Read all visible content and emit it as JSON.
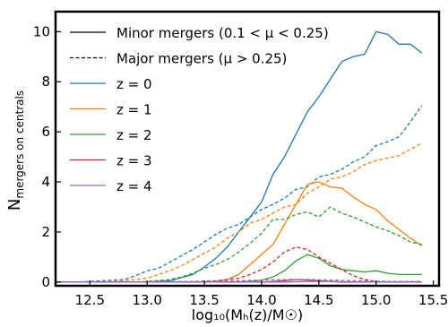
{
  "chart_data": {
    "type": "line",
    "xlabel": "log₁₀(Mₕ(z)/M☉)",
    "ylabel_main": "N",
    "ylabel_sub": "mergers on centrals",
    "xlim": [
      12.2,
      15.55
    ],
    "ylim": [
      -0.15,
      10.8
    ],
    "xticks": [
      12.5,
      13.0,
      13.5,
      14.0,
      14.5,
      15.0,
      15.5
    ],
    "xtick_labels": [
      "12.5",
      "13.0",
      "13.5",
      "14.0",
      "14.5",
      "15.0",
      "15.5"
    ],
    "yticks": [
      0,
      2,
      4,
      6,
      8,
      10
    ],
    "ytick_labels": [
      "0",
      "2",
      "4",
      "6",
      "8",
      "10"
    ],
    "grid": false,
    "legend_position": "top-left",
    "legend": [
      {
        "label": "Minor mergers (0.1 < μ < 0.25)",
        "style": "solid",
        "color": "#000000"
      },
      {
        "label": "Major mergers (μ > 0.25)",
        "style": "dashed",
        "color": "#000000"
      },
      {
        "label": "z = 0",
        "style": "solid",
        "color": "#1f77b4"
      },
      {
        "label": "z = 1",
        "style": "solid",
        "color": "#ff7f0e"
      },
      {
        "label": "z = 2",
        "style": "solid",
        "color": "#2ca02c"
      },
      {
        "label": "z = 3",
        "style": "solid",
        "color": "#d62728"
      },
      {
        "label": "z = 4",
        "style": "solid",
        "color": "#9467bd"
      }
    ],
    "series": [
      {
        "color": "#1f77b4",
        "style": "solid",
        "x": [
          12.2,
          12.4,
          12.6,
          12.8,
          13.0,
          13.2,
          13.4,
          13.5,
          13.6,
          13.7,
          13.8,
          13.9,
          14.0,
          14.1,
          14.2,
          14.3,
          14.4,
          14.5,
          14.6,
          14.7,
          14.8,
          14.9,
          15.0,
          15.1,
          15.2,
          15.3,
          15.4
        ],
        "y": [
          0,
          0,
          0,
          0,
          0,
          0.05,
          0.3,
          0.6,
          0.95,
          1.4,
          2.0,
          2.6,
          3.2,
          4.3,
          5.0,
          5.9,
          6.8,
          7.4,
          8.1,
          8.8,
          9.0,
          9.1,
          10.0,
          9.9,
          9.5,
          9.5,
          9.15
        ]
      },
      {
        "color": "#1f77b4",
        "style": "dashed",
        "x": [
          12.2,
          12.4,
          12.6,
          12.8,
          12.9,
          13.0,
          13.1,
          13.2,
          13.3,
          13.4,
          13.5,
          13.6,
          13.7,
          13.8,
          13.9,
          14.0,
          14.1,
          14.2,
          14.3,
          14.4,
          14.5,
          14.6,
          14.7,
          14.8,
          14.9,
          15.0,
          15.1,
          15.2,
          15.3,
          15.4
        ],
        "y": [
          0,
          0,
          0.05,
          0.1,
          0.25,
          0.45,
          0.55,
          0.8,
          1.05,
          1.3,
          1.6,
          1.9,
          2.15,
          2.3,
          2.6,
          2.9,
          3.1,
          3.35,
          3.7,
          3.8,
          4.2,
          4.3,
          4.5,
          4.8,
          5.0,
          5.45,
          5.6,
          5.8,
          6.4,
          7.05
        ]
      },
      {
        "color": "#ff7f0e",
        "style": "solid",
        "x": [
          12.2,
          12.6,
          13.0,
          13.4,
          13.6,
          13.7,
          13.8,
          13.9,
          14.0,
          14.1,
          14.2,
          14.3,
          14.4,
          14.5,
          14.6,
          14.7,
          14.8,
          14.9,
          15.0,
          15.1,
          15.2,
          15.3,
          15.4
        ],
        "y": [
          0,
          0,
          0,
          0,
          0.02,
          0.1,
          0.3,
          0.7,
          1.1,
          1.5,
          2.3,
          3.1,
          3.9,
          4.0,
          3.8,
          3.75,
          3.4,
          3.1,
          2.9,
          2.45,
          2.1,
          1.75,
          1.45
        ]
      },
      {
        "color": "#ff7f0e",
        "style": "dashed",
        "x": [
          12.2,
          12.6,
          12.8,
          13.0,
          13.1,
          13.2,
          13.3,
          13.4,
          13.5,
          13.6,
          13.7,
          13.8,
          13.9,
          14.0,
          14.1,
          14.2,
          14.3,
          14.4,
          14.5,
          14.6,
          14.7,
          14.8,
          14.9,
          15.0,
          15.1,
          15.2,
          15.3,
          15.4
        ],
        "y": [
          0,
          0,
          0.05,
          0.15,
          0.3,
          0.45,
          0.65,
          0.9,
          1.15,
          1.4,
          1.75,
          2.0,
          2.35,
          2.5,
          2.75,
          3.0,
          3.1,
          3.55,
          3.8,
          4.1,
          4.2,
          4.4,
          4.7,
          4.85,
          4.95,
          5.05,
          5.3,
          5.55
        ]
      },
      {
        "color": "#2ca02c",
        "style": "solid",
        "x": [
          12.2,
          12.6,
          13.0,
          13.4,
          13.6,
          13.8,
          13.9,
          14.0,
          14.1,
          14.2,
          14.3,
          14.4,
          14.5,
          14.6,
          14.7,
          14.8,
          14.9,
          15.0,
          15.1,
          15.2,
          15.3,
          15.4
        ],
        "y": [
          0,
          0,
          0,
          0,
          0,
          0,
          0.02,
          0.08,
          0.2,
          0.45,
          0.85,
          1.1,
          0.95,
          0.65,
          0.5,
          0.45,
          0.4,
          0.45,
          0.35,
          0.3,
          0.3,
          0.3
        ]
      },
      {
        "color": "#2ca02c",
        "style": "dashed",
        "x": [
          12.2,
          12.8,
          13.0,
          13.2,
          13.3,
          13.4,
          13.5,
          13.6,
          13.7,
          13.8,
          13.9,
          14.0,
          14.1,
          14.2,
          14.3,
          14.4,
          14.5,
          14.6,
          14.7,
          14.8,
          14.9,
          15.0,
          15.1,
          15.2,
          15.3,
          15.4
        ],
        "y": [
          0,
          0,
          0.02,
          0.1,
          0.2,
          0.35,
          0.55,
          0.7,
          0.9,
          1.2,
          1.55,
          1.95,
          2.5,
          2.5,
          2.7,
          2.8,
          2.6,
          3.0,
          2.75,
          2.6,
          2.4,
          2.2,
          2.05,
          1.85,
          1.6,
          1.5
        ]
      },
      {
        "color": "#d62728",
        "style": "solid",
        "x": [
          12.2,
          13.0,
          13.6,
          13.8,
          14.0,
          14.1,
          14.2,
          14.3,
          14.4,
          14.5,
          14.6,
          14.7,
          14.8,
          14.9,
          15.0,
          15.4
        ],
        "y": [
          0,
          0,
          0,
          0,
          0,
          0.02,
          0.05,
          0.1,
          0.08,
          0.05,
          0.02,
          0,
          0,
          0,
          0,
          0
        ]
      },
      {
        "color": "#d62728",
        "style": "dashed",
        "x": [
          12.2,
          13.0,
          13.4,
          13.6,
          13.7,
          13.8,
          13.9,
          14.0,
          14.1,
          14.2,
          14.3,
          14.4,
          14.5,
          14.6,
          14.7,
          14.8,
          14.9,
          15.0,
          15.2,
          15.4
        ],
        "y": [
          0,
          0,
          0.02,
          0.05,
          0.1,
          0.15,
          0.3,
          0.5,
          0.8,
          1.2,
          1.4,
          1.3,
          1.0,
          0.75,
          0.5,
          0.25,
          0.1,
          0.03,
          0,
          0
        ]
      },
      {
        "color": "#9467bd",
        "style": "solid",
        "x": [
          12.2,
          13.0,
          13.6,
          14.0,
          14.2,
          14.4,
          14.6,
          14.8,
          15.0,
          15.4
        ],
        "y": [
          0,
          0,
          0,
          0,
          0,
          0.02,
          0.02,
          0,
          0,
          0
        ]
      },
      {
        "color": "#9467bd",
        "style": "dashed",
        "x": [
          12.2,
          13.0,
          13.4,
          13.6,
          13.8,
          14.0,
          14.2,
          14.4,
          14.6,
          14.8,
          15.0,
          15.2,
          15.4
        ],
        "y": [
          0,
          0,
          0.02,
          0.03,
          0.05,
          0.08,
          0.1,
          0.1,
          0.08,
          0.05,
          0.03,
          0.02,
          0.02
        ]
      }
    ]
  }
}
